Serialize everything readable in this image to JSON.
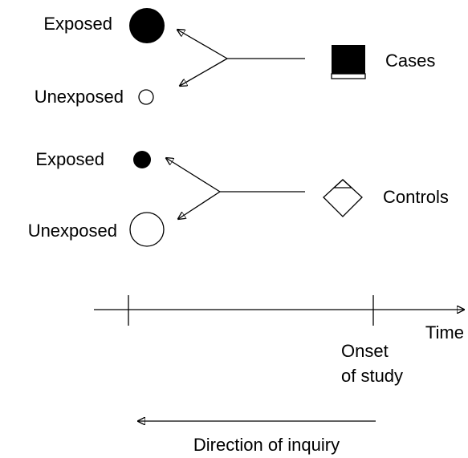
{
  "cases_group": {
    "label": "Cases",
    "exposed": "Exposed",
    "unexposed": "Unexposed"
  },
  "controls_group": {
    "label": "Controls",
    "exposed": "Exposed",
    "unexposed": "Unexposed"
  },
  "timeline": {
    "axis_label": "Time",
    "onset_label": [
      "Onset",
      "of study"
    ],
    "direction_label": "Direction of inquiry"
  }
}
